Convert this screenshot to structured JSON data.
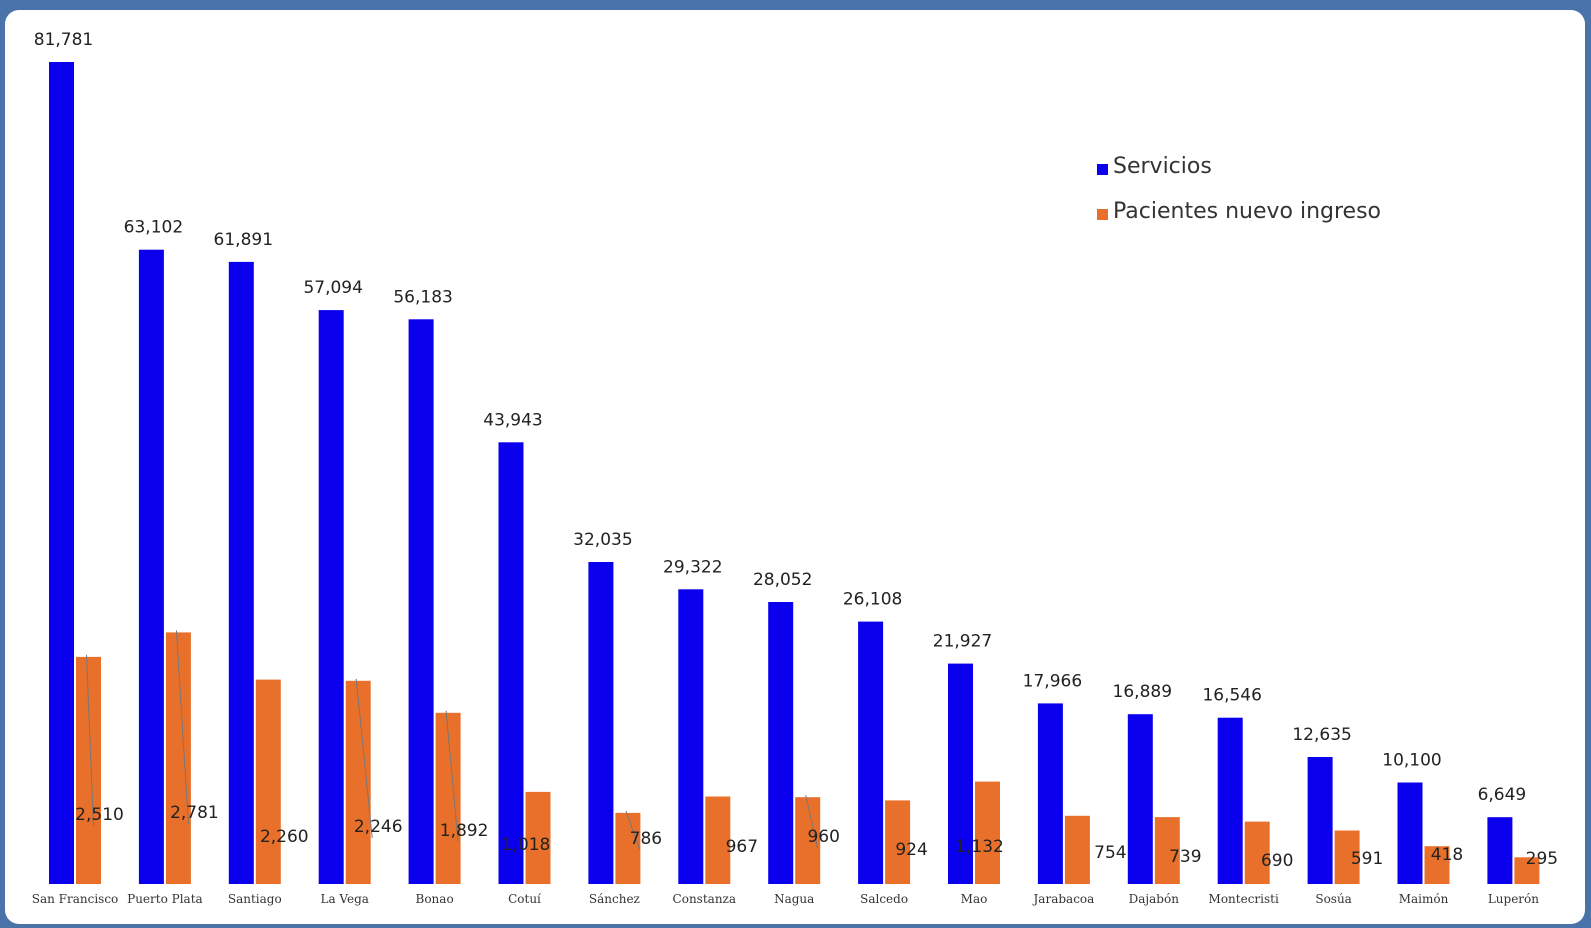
{
  "colors": {
    "frame": "#4a73a9",
    "servicios": "#0a00ee",
    "pacientes": "#e8702a",
    "leader": "#777777"
  },
  "chart_data": {
    "type": "bar",
    "categories": [
      "San Francisco",
      "Puerto Plata",
      "Santiago",
      "La Vega",
      "Bonao",
      "Cotuí",
      "Sánchez",
      "Constanza",
      "Nagua",
      "Salcedo",
      "Mao",
      "Jarabacoa",
      "Dajabón",
      "Montecristi",
      "Sosúa",
      "Maimón",
      "Luperón"
    ],
    "series": [
      {
        "name": "Servicios",
        "values": [
          81781,
          63102,
          61891,
          57094,
          56183,
          43943,
          32035,
          29322,
          28052,
          26108,
          21927,
          17966,
          16889,
          16546,
          12635,
          10100,
          6649
        ],
        "labels": [
          "81,781",
          "63,102",
          "61,891",
          "57,094",
          "56,183",
          "43,943",
          "32,035",
          "29,322",
          "28,052",
          "26,108",
          "21,927",
          "17,966",
          "16,889",
          "16,546",
          "12,635",
          "10,100",
          "6,649"
        ]
      },
      {
        "name": "Pacientes nuevo ingreso",
        "values": [
          2510,
          2781,
          2260,
          2246,
          1892,
          1018,
          786,
          967,
          960,
          924,
          1132,
          754,
          739,
          690,
          591,
          418,
          295
        ],
        "labels": [
          "2,510",
          "2,781",
          "2,260",
          "2,246",
          "1,892",
          "1,018",
          "786",
          "967",
          "960",
          "924",
          "1,132",
          "754",
          "739",
          "690",
          "591",
          "418",
          "295"
        ]
      }
    ],
    "ylim": [
      0,
      81781
    ],
    "grid": false,
    "legend_position": "top-right",
    "title": "",
    "xlabel": "",
    "ylabel": ""
  }
}
